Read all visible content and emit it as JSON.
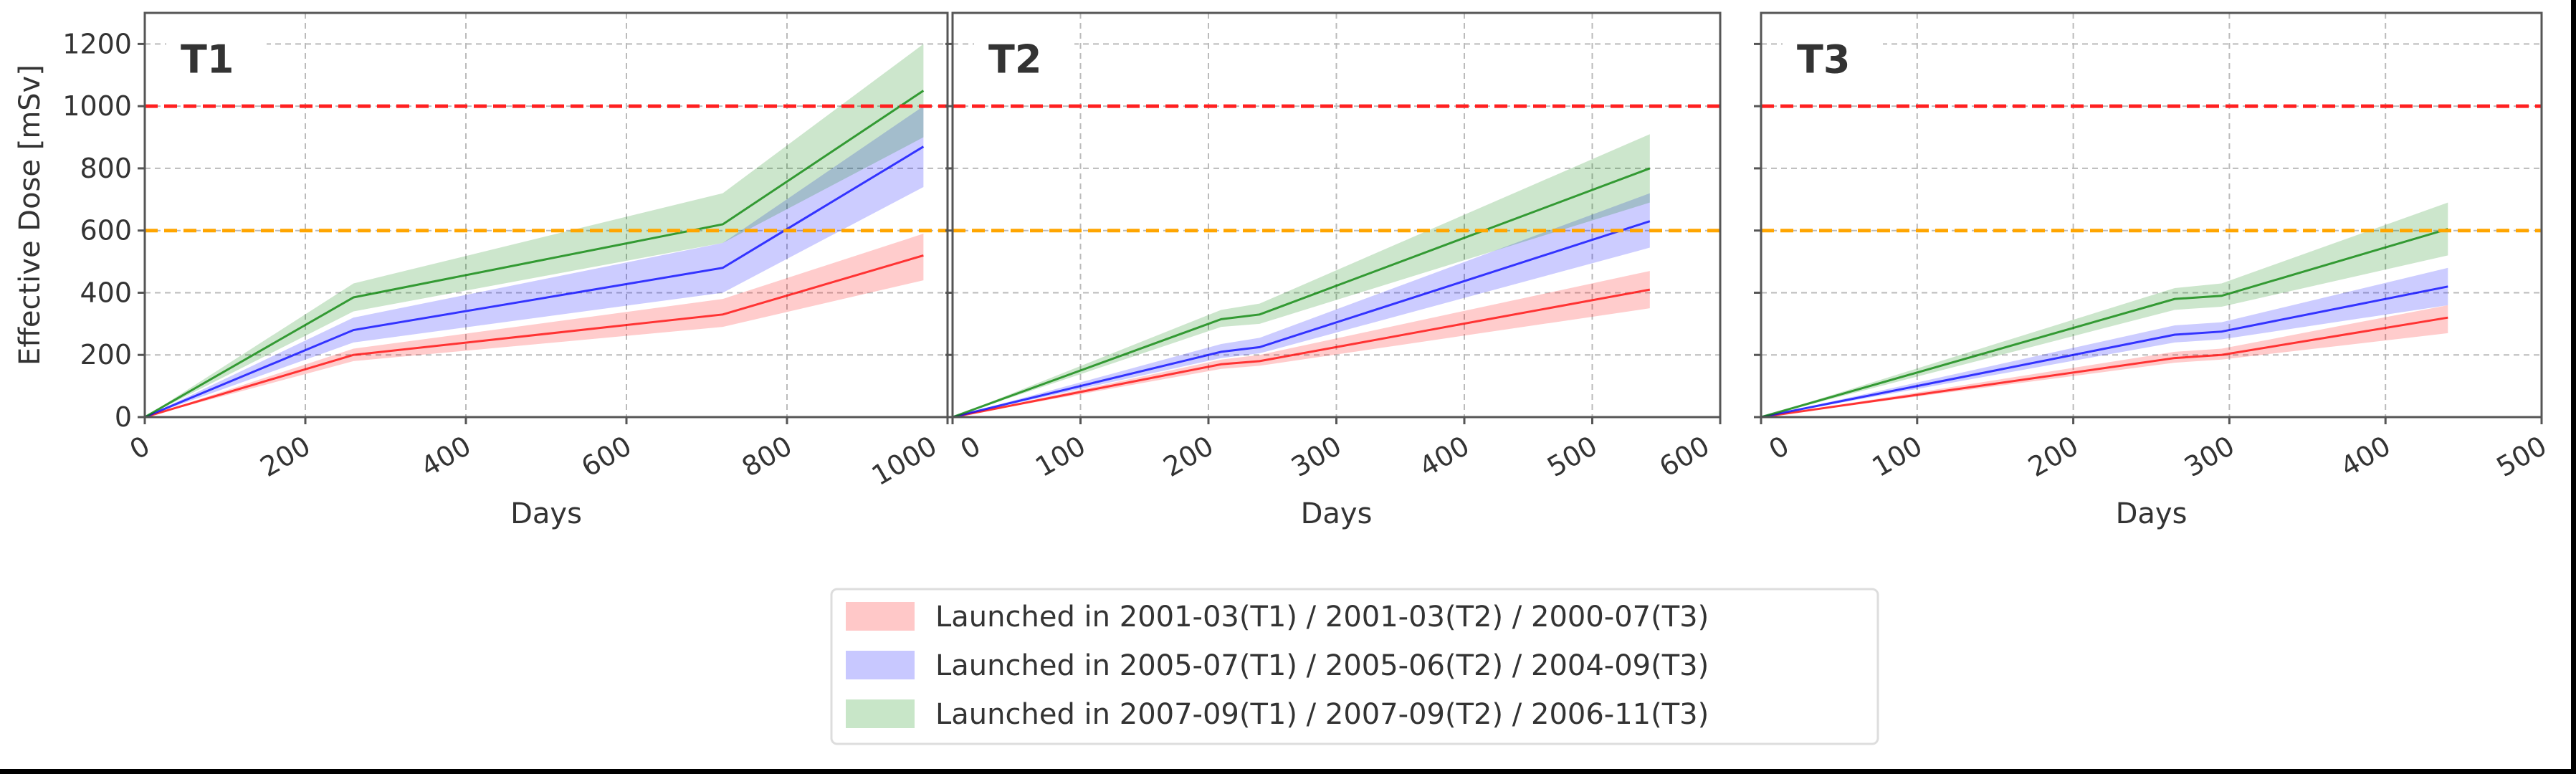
{
  "chart_data": [
    {
      "type": "line",
      "title": "T1",
      "xlabel": "Days",
      "ylabel": "Effective Dose [mSv]",
      "xlim": [
        0,
        1000
      ],
      "ylim": [
        0,
        1300
      ],
      "xticks": [
        0,
        200,
        400,
        600,
        800,
        1000
      ],
      "yticks": [
        0,
        200,
        400,
        600,
        800,
        1000,
        1200
      ],
      "grid": true,
      "reference_lines": [
        {
          "y": 1000,
          "color": "#ff2020"
        },
        {
          "y": 600,
          "color": "#ffa500"
        }
      ],
      "series": [
        {
          "name": "Launched in 2001-03(T1) / 2001-03(T2) / 2000-07(T3)",
          "color": "#ff0000",
          "x": [
            0,
            260,
            720,
            970
          ],
          "values": [
            0,
            200,
            330,
            520
          ],
          "lower": [
            0,
            180,
            290,
            440
          ],
          "upper": [
            0,
            220,
            380,
            590
          ]
        },
        {
          "name": "Launched in 2005-07(T1) / 2005-06(T2) / 2004-09(T3)",
          "color": "#0000ff",
          "x": [
            0,
            260,
            720,
            970
          ],
          "values": [
            0,
            280,
            480,
            870
          ],
          "lower": [
            0,
            240,
            400,
            740
          ],
          "upper": [
            0,
            320,
            560,
            1000
          ]
        },
        {
          "name": "Launched in 2007-09(T1) / 2007-09(T2) / 2006-11(T3)",
          "color": "#008000",
          "x": [
            0,
            260,
            720,
            970
          ],
          "values": [
            0,
            385,
            620,
            1050
          ],
          "lower": [
            0,
            340,
            560,
            900
          ],
          "upper": [
            0,
            430,
            720,
            1200
          ]
        }
      ]
    },
    {
      "type": "line",
      "title": "T2",
      "xlabel": "Days",
      "ylabel": "",
      "xlim": [
        0,
        600
      ],
      "ylim": [
        0,
        1300
      ],
      "xticks": [
        0,
        100,
        200,
        300,
        400,
        500,
        600
      ],
      "yticks": [
        0,
        200,
        400,
        600,
        800,
        1000,
        1200
      ],
      "grid": true,
      "reference_lines": [
        {
          "y": 1000,
          "color": "#ff2020"
        },
        {
          "y": 600,
          "color": "#ffa500"
        }
      ],
      "series": [
        {
          "name": "Launched in 2001-03(T1) / 2001-03(T2) / 2000-07(T3)",
          "color": "#ff0000",
          "x": [
            0,
            210,
            240,
            545
          ],
          "values": [
            0,
            170,
            180,
            410
          ],
          "lower": [
            0,
            155,
            165,
            350
          ],
          "upper": [
            0,
            185,
            200,
            470
          ]
        },
        {
          "name": "Launched in 2005-07(T1) / 2005-06(T2) / 2004-09(T3)",
          "color": "#0000ff",
          "x": [
            0,
            210,
            240,
            545
          ],
          "values": [
            0,
            210,
            225,
            630
          ],
          "lower": [
            0,
            190,
            205,
            545
          ],
          "upper": [
            0,
            235,
            255,
            720
          ]
        },
        {
          "name": "Launched in 2007-09(T1) / 2007-09(T2) / 2006-11(T3)",
          "color": "#008000",
          "x": [
            0,
            210,
            240,
            545
          ],
          "values": [
            0,
            315,
            330,
            800
          ],
          "lower": [
            0,
            290,
            300,
            690
          ],
          "upper": [
            0,
            345,
            365,
            910
          ]
        }
      ]
    },
    {
      "type": "line",
      "title": "T3",
      "xlabel": "Days",
      "ylabel": "",
      "xlim": [
        0,
        500
      ],
      "ylim": [
        0,
        1300
      ],
      "xticks": [
        0,
        100,
        200,
        300,
        400,
        500
      ],
      "yticks": [
        0,
        200,
        400,
        600,
        800,
        1000,
        1200
      ],
      "grid": true,
      "reference_lines": [
        {
          "y": 1000,
          "color": "#ff2020"
        },
        {
          "y": 600,
          "color": "#ffa500"
        }
      ],
      "series": [
        {
          "name": "Launched in 2001-03(T1) / 2001-03(T2) / 2000-07(T3)",
          "color": "#ff0000",
          "x": [
            0,
            265,
            295,
            440
          ],
          "values": [
            0,
            190,
            200,
            320
          ],
          "lower": [
            0,
            175,
            185,
            270
          ],
          "upper": [
            0,
            210,
            220,
            360
          ]
        },
        {
          "name": "Launched in 2005-07(T1) / 2005-06(T2) / 2004-09(T3)",
          "color": "#0000ff",
          "x": [
            0,
            265,
            295,
            440
          ],
          "values": [
            0,
            265,
            275,
            420
          ],
          "lower": [
            0,
            240,
            250,
            360
          ],
          "upper": [
            0,
            295,
            305,
            480
          ]
        },
        {
          "name": "Launched in 2007-09(T1) / 2007-09(T2) / 2006-11(T3)",
          "color": "#008000",
          "x": [
            0,
            265,
            295,
            440
          ],
          "values": [
            0,
            380,
            390,
            605
          ],
          "lower": [
            0,
            345,
            355,
            520
          ],
          "upper": [
            0,
            415,
            430,
            690
          ]
        }
      ]
    }
  ],
  "legend": {
    "placement": "bottom-center",
    "entries": [
      {
        "label": "Launched in 2001-03(T1) / 2001-03(T2) / 2000-07(T3)",
        "color": "#ffc8c8"
      },
      {
        "label": "Launched in 2005-07(T1) / 2005-06(T2) / 2004-09(T3)",
        "color": "#c8c8ff"
      },
      {
        "label": "Launched in 2007-09(T1) / 2007-09(T2) / 2006-11(T3)",
        "color": "#c8e6c8"
      }
    ]
  }
}
